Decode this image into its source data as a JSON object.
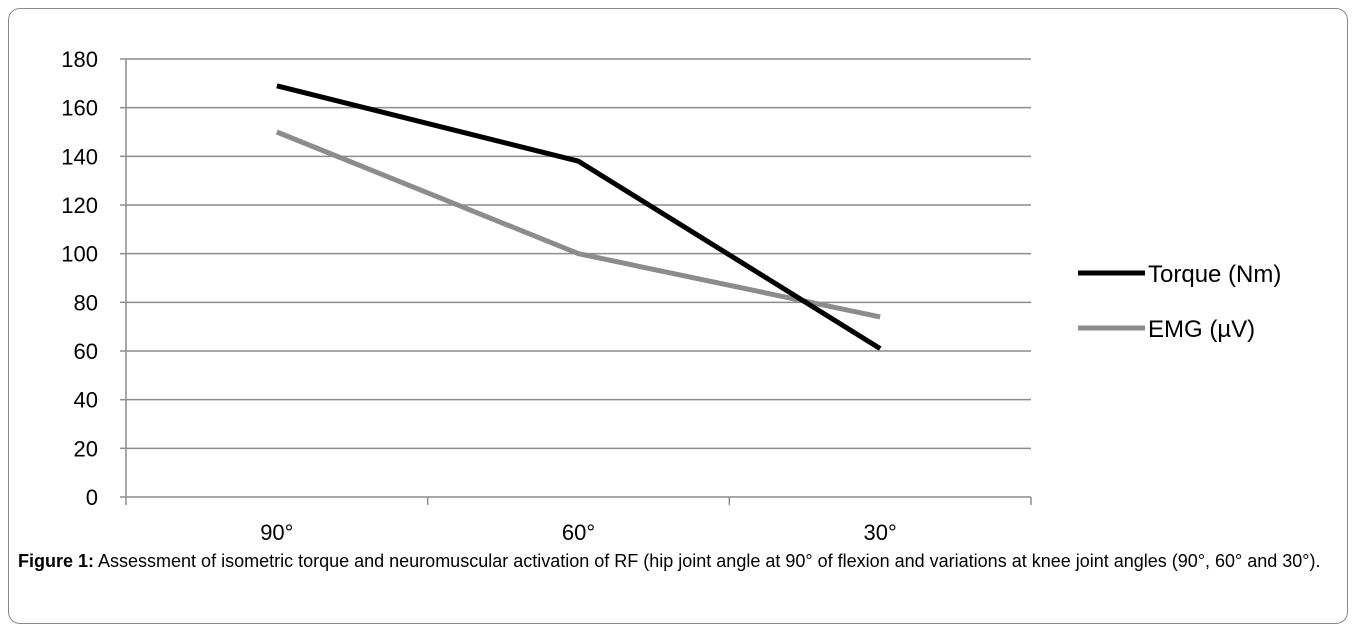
{
  "chart_data": {
    "type": "line",
    "categories": [
      "90°",
      "60°",
      "30°"
    ],
    "series": [
      {
        "name": "Torque (Nm)",
        "values": [
          169,
          138,
          61
        ],
        "color": "#000000"
      },
      {
        "name": "EMG (µV)",
        "values": [
          150,
          100,
          74
        ],
        "color": "#8c8c8c"
      }
    ],
    "ylim": [
      0,
      180
    ],
    "yticks": [
      "0",
      "20",
      "40",
      "60",
      "80",
      "100",
      "120",
      "140",
      "160",
      "180"
    ],
    "grid": true,
    "legend": "right"
  },
  "caption": {
    "label": "Figure 1:",
    "text": " Assessment of isometric torque and neuromuscular activation of RF (hip joint angle at 90° of flexion and variations at knee joint angles (90°, 60° and 30°)."
  }
}
